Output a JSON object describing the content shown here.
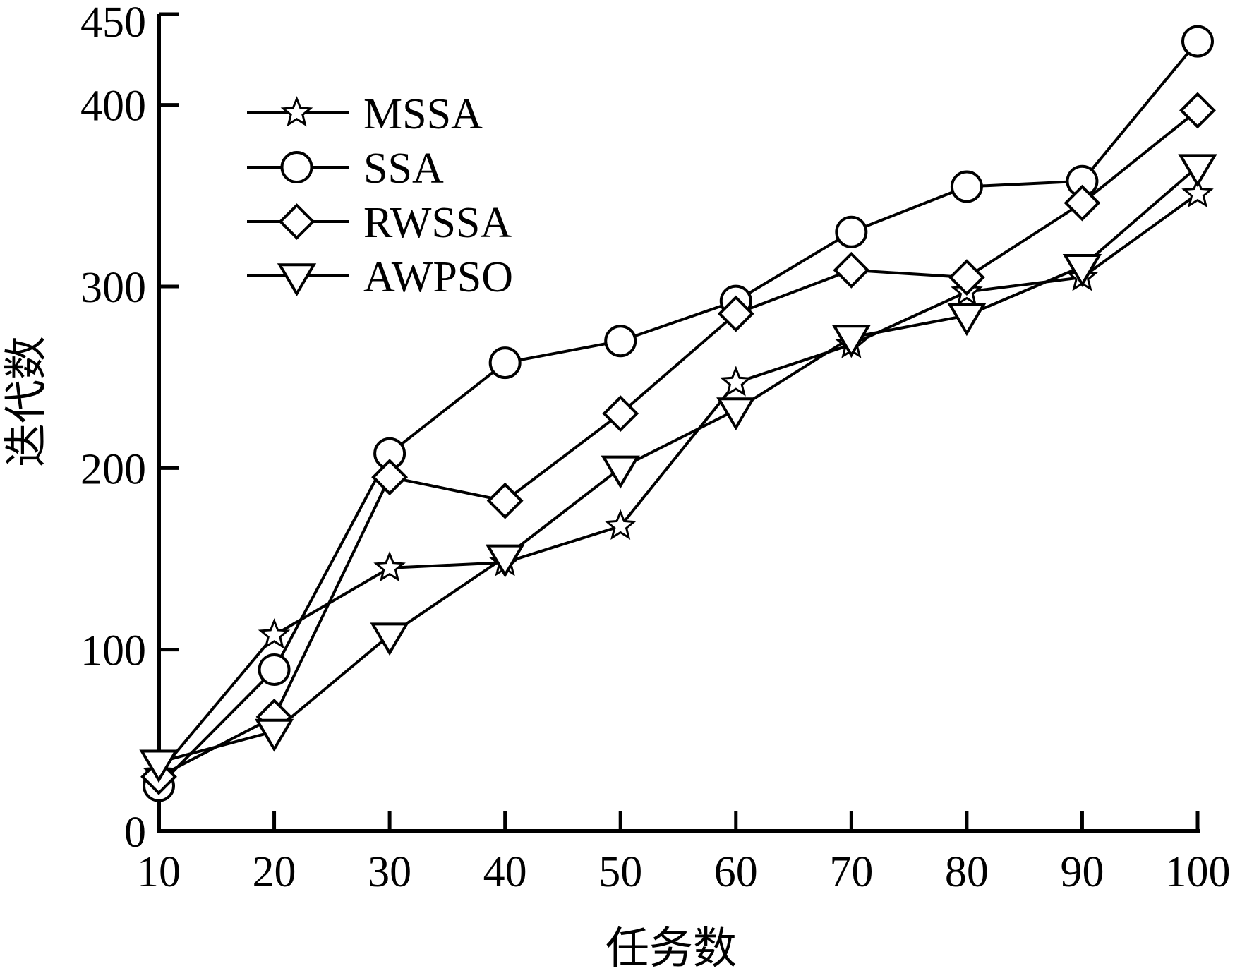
{
  "chart_data": {
    "type": "line",
    "x": [
      10,
      20,
      30,
      40,
      50,
      60,
      70,
      80,
      90,
      100
    ],
    "xticks": [
      10,
      20,
      30,
      40,
      50,
      60,
      70,
      80,
      90,
      100
    ],
    "yticks": [
      0,
      100,
      200,
      300,
      400,
      450
    ],
    "xlim": [
      10,
      100
    ],
    "ylim": [
      0,
      450
    ],
    "xlabel": "任务数",
    "ylabel": "迭代数",
    "grid": false,
    "legend_position": "top-left",
    "series": [
      {
        "name": "MSSA",
        "marker": "star",
        "values": [
          32,
          108,
          145,
          148,
          168,
          247,
          268,
          297,
          305,
          351
        ]
      },
      {
        "name": "SSA",
        "marker": "circle",
        "values": [
          25,
          89,
          208,
          258,
          270,
          292,
          330,
          355,
          358,
          435
        ]
      },
      {
        "name": "RWSSA",
        "marker": "diamond",
        "values": [
          30,
          63,
          195,
          182,
          230,
          285,
          309,
          305,
          346,
          397
        ]
      },
      {
        "name": "AWPSO",
        "marker": "triangle-down",
        "values": [
          38,
          55,
          108,
          151,
          200,
          232,
          272,
          284,
          311,
          366
        ]
      }
    ],
    "color": "#000000"
  }
}
